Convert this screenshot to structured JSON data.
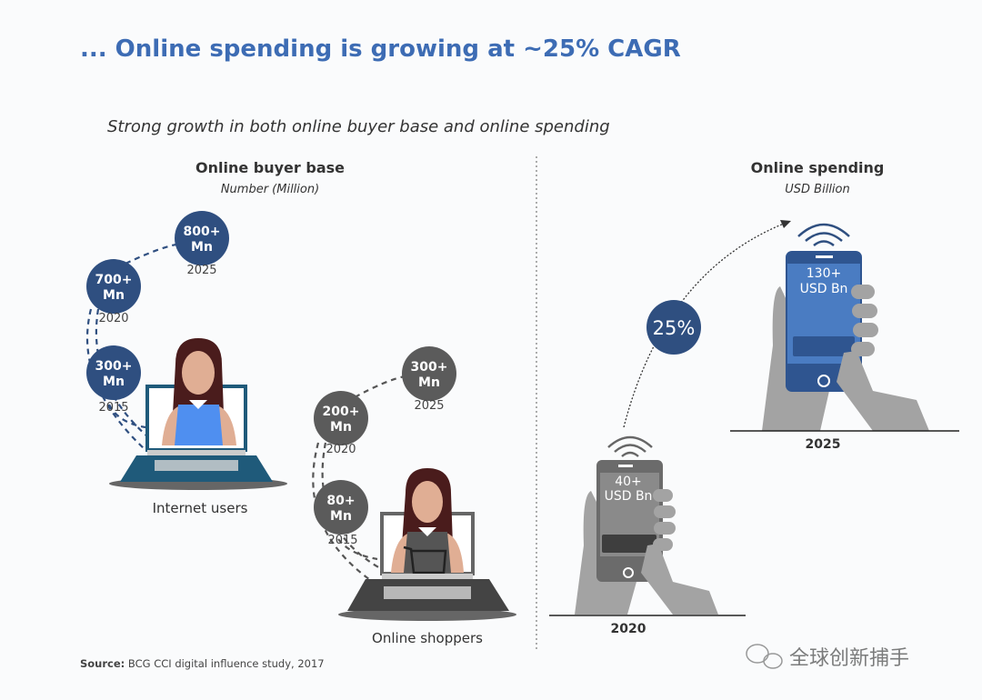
{
  "title": "... Online spending is growing at ~25% CAGR",
  "subtitle": "Strong growth in both online buyer base and online spending",
  "colors": {
    "title": "#3d6cb4",
    "blue_dark": "#2f4f80",
    "gray_dark": "#5b5b5b",
    "phone_blue": "#4a7cc2",
    "phone_gray": "#6b6b6b",
    "hand": "#a3a3a3"
  },
  "buyer_base": {
    "heading": "Online buyer base",
    "unit": "Number (Million)",
    "internet_users": {
      "label": "Internet users",
      "points": [
        {
          "value": "300+",
          "unit": "Mn",
          "year": "2015"
        },
        {
          "value": "700+",
          "unit": "Mn",
          "year": "2020"
        },
        {
          "value": "800+",
          "unit": "Mn",
          "year": "2025"
        }
      ]
    },
    "online_shoppers": {
      "label": "Online shoppers",
      "points": [
        {
          "value": "80+",
          "unit": "Mn",
          "year": "2015"
        },
        {
          "value": "200+",
          "unit": "Mn",
          "year": "2020"
        },
        {
          "value": "300+",
          "unit": "Mn",
          "year": "2025"
        }
      ]
    }
  },
  "spending": {
    "heading": "Online spending",
    "unit": "USD Billion",
    "growth": "25%",
    "phones": [
      {
        "value": "40+",
        "unit": "USD Bn",
        "year": "2020"
      },
      {
        "value": "130+",
        "unit": "USD Bn",
        "year": "2025"
      }
    ]
  },
  "source": {
    "label": "Source:",
    "text": "BCG CCI digital influence study, 2017"
  },
  "watermark": "全球创新捕手"
}
